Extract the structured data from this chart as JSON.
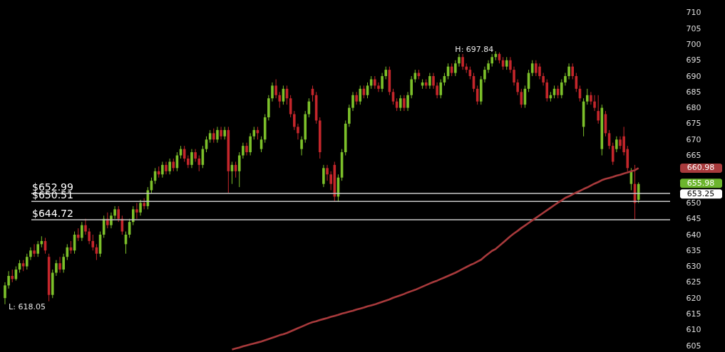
{
  "chart_data": {
    "type": "candlestick",
    "categories": [
      null,
      null,
      null,
      null,
      null,
      null,
      null,
      null,
      null,
      null,
      null,
      null,
      null,
      null,
      null,
      null,
      null,
      null,
      null,
      null,
      null,
      null,
      null,
      null,
      null,
      null,
      null,
      null,
      null,
      null,
      null,
      null,
      null,
      null,
      null,
      null,
      null,
      null,
      null,
      null,
      null,
      null,
      null,
      null,
      null,
      null,
      null,
      null,
      null,
      null,
      null,
      null,
      null,
      null,
      null,
      null,
      null,
      null,
      null,
      null,
      null,
      null,
      null,
      null,
      null,
      null,
      null,
      null,
      null,
      null,
      null,
      null,
      null,
      null,
      null,
      null,
      null,
      null,
      null,
      null,
      null,
      null,
      null,
      null,
      null,
      null,
      null,
      null,
      null,
      null,
      null,
      null,
      null,
      null,
      null,
      null,
      null,
      null,
      null,
      null,
      null,
      null,
      null,
      null,
      null,
      null,
      null,
      null,
      null,
      null,
      null,
      null,
      null,
      null,
      null,
      null,
      null,
      null,
      null,
      null,
      null,
      null,
      null,
      null,
      null,
      null,
      null,
      null,
      null,
      null,
      null,
      null,
      null,
      null,
      null,
      null,
      null,
      null,
      null,
      null,
      null,
      null,
      null,
      null,
      null,
      null,
      null,
      null,
      null,
      null,
      null,
      null,
      null,
      null,
      null,
      null,
      null,
      null,
      null,
      null,
      null,
      null,
      null,
      null,
      null,
      null,
      null,
      null,
      null,
      null,
      null,
      null,
      null,
      null
    ],
    "colors": [
      "#7cc02a",
      "#7cc02a",
      "#c4262b",
      "#7cc02a",
      "#7cc02a",
      "#c4262b",
      "#7cc02a",
      "#7cc02a",
      "#c4262b",
      "#7cc02a",
      "#7cc02a",
      "#c4262b",
      "#c4262b",
      "#7cc02a",
      "#7cc02a",
      "#c4262b",
      "#7cc02a",
      "#7cc02a",
      "#c4262b",
      "#7cc02a",
      "#c4262b",
      "#7cc02a",
      "#c4262b",
      "#c4262b",
      "#c4262b",
      "#c4262b",
      "#7cc02a",
      "#7cc02a",
      "#c4262b",
      "#7cc02a",
      "#7cc02a",
      "#c4262b",
      "#c4262b",
      "#7cc02a",
      "#7cc02a",
      "#7cc02a",
      "#c4262b",
      "#7cc02a",
      "#c4262b",
      "#7cc02a",
      "#7cc02a",
      "#7cc02a",
      "#c4262b",
      "#7cc02a",
      "#c4262b",
      "#7cc02a",
      "#c4262b",
      "#7cc02a",
      "#7cc02a",
      "#c4262b",
      "#c4262b",
      "#7cc02a",
      "#c4262b",
      "#c4262b",
      "#7cc02a",
      "#7cc02a",
      "#7cc02a",
      "#c4262b",
      "#7cc02a",
      "#c4262b",
      "#7cc02a",
      "#c4262b",
      "#7cc02a",
      "#c4262b",
      "#7cc02a",
      "#7cc02a",
      "#c4262b",
      "#7cc02a",
      "#7cc02a",
      "#c4262b",
      "#7cc02a",
      "#7cc02a",
      "#7cc02a",
      "#7cc02a",
      "#c4262b",
      "#c4262b",
      "#7cc02a",
      "#c4262b",
      "#c4262b",
      "#c4262b",
      "#c4262b",
      "#7cc02a",
      "#7cc02a",
      "#7cc02a",
      "#c4262b",
      "#c4262b",
      "#c4262b",
      "#7cc02a",
      "#c4262b",
      "#c4262b",
      "#c4262b",
      "#7cc02a",
      "#7cc02a",
      "#7cc02a",
      "#7cc02a",
      "#7cc02a",
      "#c4262b",
      "#7cc02a",
      "#c4262b",
      "#7cc02a",
      "#7cc02a",
      "#c4262b",
      "#c4262b",
      "#7cc02a",
      "#7cc02a",
      "#c4262b",
      "#c4262b",
      "#c4262b",
      "#7cc02a",
      "#c4262b",
      "#7cc02a",
      "#7cc02a",
      "#7cc02a",
      "#c4262b",
      "#7cc02a",
      "#c4262b",
      "#7cc02a",
      "#c4262b",
      "#c4262b",
      "#7cc02a",
      "#7cc02a",
      "#7cc02a",
      "#c4262b",
      "#7cc02a",
      "#7cc02a",
      "#c4262b",
      "#c4262b",
      "#c4262b",
      "#c4262b",
      "#c4262b",
      "#7cc02a",
      "#7cc02a",
      "#7cc02a",
      "#7cc02a",
      "#7cc02a",
      "#c4262b",
      "#c4262b",
      "#7cc02a",
      "#c4262b",
      "#c4262b",
      "#c4262b",
      "#c4262b",
      "#7cc02a",
      "#7cc02a",
      "#7cc02a",
      "#c4262b",
      "#c4262b",
      "#c4262b",
      "#c4262b",
      "#7cc02a",
      "#7cc02a",
      "#c4262b",
      "#7cc02a",
      "#7cc02a",
      "#7cc02a",
      "#c4262b",
      "#c4262b",
      "#c4262b",
      "#7cc02a",
      "#7cc02a",
      "#c4262b",
      "#c4262b",
      "#c4262b",
      "#7cc02a",
      "#c4262b",
      "#c4262b",
      "#c4262b",
      "#7cc02a",
      "#c4262b",
      "#c4262b",
      "#c4262b",
      "#7cc02a",
      "#c4262b",
      "#7cc02a"
    ],
    "ohlc": [
      [
        620,
        625,
        618.05,
        624
      ],
      [
        624,
        628.5,
        623,
        627
      ],
      [
        627,
        629,
        625,
        626
      ],
      [
        626,
        630,
        625.5,
        629
      ],
      [
        629,
        632,
        628,
        631
      ],
      [
        631,
        632,
        628.5,
        630
      ],
      [
        630,
        634,
        629,
        633
      ],
      [
        633,
        636,
        632,
        635
      ],
      [
        635,
        637,
        633,
        634
      ],
      [
        634,
        638,
        633,
        637
      ],
      [
        637,
        639.5,
        636,
        638
      ],
      [
        638,
        639,
        634,
        635
      ],
      [
        633,
        634,
        619,
        621
      ],
      [
        621,
        629,
        620,
        628
      ],
      [
        628,
        632,
        627,
        631
      ],
      [
        631,
        633,
        628,
        629
      ],
      [
        629,
        634,
        628,
        633
      ],
      [
        633,
        637,
        632,
        636
      ],
      [
        636,
        638,
        634,
        635
      ],
      [
        635,
        641,
        634,
        640
      ],
      [
        640,
        642,
        638,
        639
      ],
      [
        639,
        644,
        638,
        643
      ],
      [
        643,
        645,
        640,
        641
      ],
      [
        641,
        642,
        637,
        638
      ],
      [
        638,
        640,
        635,
        636
      ],
      [
        636,
        637,
        632,
        634
      ],
      [
        634,
        641,
        633,
        640
      ],
      [
        640,
        646,
        639,
        645
      ],
      [
        645,
        647,
        642,
        643
      ],
      [
        643,
        647,
        642,
        646
      ],
      [
        646,
        649,
        645,
        648
      ],
      [
        648,
        649,
        644,
        645
      ],
      [
        645,
        646,
        640,
        641
      ],
      [
        637,
        641,
        634,
        640
      ],
      [
        640,
        645,
        639,
        644
      ],
      [
        644,
        649,
        643,
        648
      ],
      [
        648,
        650,
        645,
        647
      ],
      [
        647,
        651,
        646,
        650
      ],
      [
        650,
        651.5,
        648,
        649
      ],
      [
        649,
        655,
        648,
        654
      ],
      [
        654,
        658,
        653,
        657
      ],
      [
        657,
        661,
        656,
        660
      ],
      [
        660,
        661.5,
        658,
        659
      ],
      [
        659,
        663,
        658,
        662
      ],
      [
        662,
        663,
        659,
        660
      ],
      [
        660,
        664,
        659,
        663
      ],
      [
        663,
        664,
        660,
        661
      ],
      [
        661,
        666,
        660,
        665
      ],
      [
        665,
        668,
        664,
        667
      ],
      [
        667,
        668,
        663,
        664
      ],
      [
        664,
        665,
        661,
        662
      ],
      [
        662,
        667,
        661,
        666
      ],
      [
        666,
        667,
        663,
        664
      ],
      [
        664,
        665,
        660,
        662
      ],
      [
        662,
        668,
        661,
        667
      ],
      [
        667,
        671,
        666,
        670
      ],
      [
        670,
        673,
        669,
        672
      ],
      [
        672,
        673.5,
        669,
        670
      ],
      [
        670,
        674,
        669,
        673
      ],
      [
        673,
        674,
        670,
        671
      ],
      [
        671,
        674,
        670,
        673
      ],
      [
        673,
        674,
        653.2,
        660
      ],
      [
        660,
        663,
        656,
        662
      ],
      [
        662,
        663,
        658,
        660
      ],
      [
        660,
        666,
        655,
        665
      ],
      [
        665,
        669,
        664,
        668
      ],
      [
        668,
        669,
        665,
        666
      ],
      [
        666,
        672,
        665,
        671
      ],
      [
        671,
        674,
        670,
        673
      ],
      [
        673,
        674,
        670,
        672
      ],
      [
        667,
        671,
        666,
        670
      ],
      [
        670,
        678,
        669,
        677
      ],
      [
        677,
        684,
        676,
        683
      ],
      [
        683,
        688,
        682,
        687
      ],
      [
        687,
        689,
        683,
        684
      ],
      [
        684,
        685,
        680,
        682
      ],
      [
        682,
        687,
        681,
        686
      ],
      [
        686,
        687,
        681,
        683
      ],
      [
        683,
        684,
        677,
        678
      ],
      [
        678,
        679,
        673,
        674
      ],
      [
        674,
        675,
        670,
        672
      ],
      [
        667,
        671,
        665,
        670
      ],
      [
        670,
        679,
        669,
        678
      ],
      [
        678,
        683,
        677,
        682
      ],
      [
        686,
        687,
        682,
        684
      ],
      [
        684,
        685,
        675,
        676
      ],
      [
        676,
        677,
        664,
        666
      ],
      [
        656,
        662,
        655,
        661
      ],
      [
        661,
        662,
        657,
        659
      ],
      [
        659,
        660,
        654,
        656
      ],
      [
        662,
        663,
        650.6,
        652
      ],
      [
        652,
        659,
        650.51,
        658
      ],
      [
        658,
        667,
        657,
        666
      ],
      [
        666,
        676,
        665,
        675
      ],
      [
        675,
        681,
        674,
        680
      ],
      [
        680,
        685,
        679,
        684
      ],
      [
        684,
        685,
        681,
        682
      ],
      [
        682,
        687,
        681,
        686
      ],
      [
        686,
        687,
        683,
        684
      ],
      [
        684,
        688,
        683,
        687
      ],
      [
        687,
        690,
        686,
        689
      ],
      [
        689,
        690,
        686,
        687
      ],
      [
        687,
        688,
        685,
        686
      ],
      [
        686,
        691,
        685,
        690
      ],
      [
        690,
        693,
        689,
        692
      ],
      [
        692,
        693,
        684,
        685
      ],
      [
        685,
        686,
        681,
        682
      ],
      [
        682,
        683,
        679,
        680
      ],
      [
        680,
        684,
        679,
        683
      ],
      [
        683,
        684,
        679,
        680
      ],
      [
        680,
        685,
        679,
        684
      ],
      [
        684,
        690,
        683,
        689
      ],
      [
        689,
        692,
        688,
        691
      ],
      [
        691,
        692,
        689,
        690
      ],
      [
        687,
        689,
        686,
        688
      ],
      [
        688,
        689,
        686,
        687
      ],
      [
        687,
        691,
        686,
        690
      ],
      [
        690,
        691,
        686,
        687
      ],
      [
        687,
        688,
        683,
        684
      ],
      [
        684,
        689,
        683,
        688
      ],
      [
        688,
        691,
        687,
        690
      ],
      [
        690,
        694,
        689,
        693
      ],
      [
        693,
        694,
        690,
        691
      ],
      [
        691,
        695,
        690,
        694
      ],
      [
        694,
        697,
        693,
        696
      ],
      [
        696,
        697,
        692,
        693
      ],
      [
        693,
        694,
        691,
        692
      ],
      [
        692,
        693,
        689,
        690
      ],
      [
        690,
        691,
        685,
        686
      ],
      [
        686,
        687,
        681,
        682
      ],
      [
        682,
        690,
        681,
        689
      ],
      [
        689,
        693,
        688,
        692
      ],
      [
        692,
        695,
        691,
        694
      ],
      [
        694,
        697,
        693,
        696
      ],
      [
        696,
        697.84,
        695,
        697
      ],
      [
        697,
        697.5,
        694,
        695
      ],
      [
        695,
        696,
        692,
        693
      ],
      [
        693,
        696,
        692,
        695
      ],
      [
        695,
        696,
        691,
        692
      ],
      [
        692,
        693,
        687,
        688
      ],
      [
        688,
        689,
        684,
        685
      ],
      [
        685,
        686,
        680,
        681
      ],
      [
        681,
        687,
        680,
        686
      ],
      [
        686,
        692,
        685,
        691
      ],
      [
        691,
        695,
        690,
        694
      ],
      [
        694,
        695,
        690,
        691
      ],
      [
        693,
        694,
        689,
        690
      ],
      [
        690,
        691,
        687,
        688
      ],
      [
        688,
        689,
        682,
        683
      ],
      [
        683,
        685,
        682,
        684
      ],
      [
        684,
        687,
        683,
        686
      ],
      [
        686,
        687,
        683,
        684
      ],
      [
        684,
        689,
        683,
        688
      ],
      [
        688,
        691,
        687,
        690
      ],
      [
        690,
        694,
        689,
        693
      ],
      [
        693,
        694,
        689,
        690
      ],
      [
        690,
        691,
        685,
        686
      ],
      [
        686,
        687,
        682,
        683
      ],
      [
        674,
        683,
        671,
        682
      ],
      [
        682,
        686,
        681,
        684
      ],
      [
        684,
        685,
        681,
        682
      ],
      [
        682,
        684,
        679,
        680
      ],
      [
        679,
        684,
        675,
        676
      ],
      [
        667,
        681,
        665,
        680
      ],
      [
        678,
        679,
        671,
        672
      ],
      [
        672,
        673,
        667,
        668
      ],
      [
        668,
        669,
        662,
        663
      ],
      [
        667,
        671,
        666,
        670
      ],
      [
        670,
        671,
        667,
        668
      ],
      [
        671,
        674,
        665,
        666
      ],
      [
        667,
        668,
        660,
        661
      ],
      [
        656,
        661,
        654,
        660
      ],
      [
        656,
        662,
        644.72,
        650
      ],
      [
        651,
        656.5,
        650,
        655.98
      ]
    ],
    "series": [
      {
        "type": "line",
        "color": "#a83a3c",
        "values": [
          null,
          null,
          null,
          null,
          null,
          null,
          null,
          null,
          null,
          null,
          null,
          null,
          null,
          null,
          null,
          null,
          null,
          null,
          null,
          null,
          null,
          null,
          null,
          null,
          null,
          null,
          null,
          null,
          null,
          null,
          null,
          null,
          null,
          null,
          null,
          null,
          null,
          null,
          null,
          null,
          null,
          null,
          null,
          null,
          null,
          null,
          null,
          null,
          null,
          null,
          null,
          null,
          null,
          null,
          null,
          null,
          null,
          null,
          null,
          null,
          null,
          null,
          603.8,
          604.1,
          604.4,
          604.8,
          605.1,
          605.4,
          605.7,
          606.0,
          606.3,
          606.7,
          607.1,
          607.5,
          607.9,
          608.3,
          608.6,
          609.0,
          609.5,
          610.0,
          610.5,
          611.0,
          611.5,
          612.0,
          612.4,
          612.7,
          613.1,
          613.4,
          613.7,
          614.1,
          614.4,
          614.7,
          615.1,
          615.4,
          615.7,
          616.0,
          616.4,
          616.7,
          617.0,
          617.4,
          617.7,
          618.0,
          618.4,
          618.8,
          619.2,
          619.6,
          620.1,
          620.5,
          620.9,
          621.3,
          621.8,
          622.2,
          622.6,
          623.1,
          623.6,
          624.1,
          624.6,
          625.1,
          625.5,
          626.0,
          626.5,
          627.0,
          627.5,
          628.0,
          628.6,
          629.2,
          629.8,
          630.4,
          630.9,
          631.5,
          632.1,
          633.1,
          634.0,
          634.9,
          635.5,
          636.5,
          637.5,
          638.5,
          639.5,
          640.4,
          641.2,
          642.1,
          642.9,
          643.7,
          644.5,
          645.3,
          646.1,
          646.9,
          647.7,
          648.5,
          649.3,
          650.1,
          650.8,
          651.6,
          652.1,
          652.7,
          653.3,
          653.8,
          654.4,
          654.9,
          655.5,
          656.1,
          656.6,
          657.2,
          657.6,
          657.9,
          658.2,
          658.6,
          658.9,
          659.3,
          659.6,
          660.0,
          660.3,
          660.98
        ]
      }
    ],
    "ylim": [
      603,
      714
    ],
    "yticks": [
      605,
      610,
      615,
      620,
      625,
      630,
      635,
      640,
      645,
      650,
      665,
      670,
      675,
      680,
      685,
      690,
      695,
      700,
      705,
      710
    ],
    "ref_lines": [
      {
        "axis": "y",
        "value": 652.99,
        "label": "$652.99",
        "color": "#c8c8c8"
      },
      {
        "axis": "y",
        "value": 650.51,
        "label": "$650.51",
        "color": "#c8c8c8"
      },
      {
        "axis": "y",
        "value": 644.72,
        "label": "$644.72",
        "color": "#c8c8c8"
      }
    ],
    "annotations": [
      "H: 697.84",
      "L: 618.05",
      "660.98",
      "655.98",
      "653.25"
    ],
    "grid": false
  }
}
